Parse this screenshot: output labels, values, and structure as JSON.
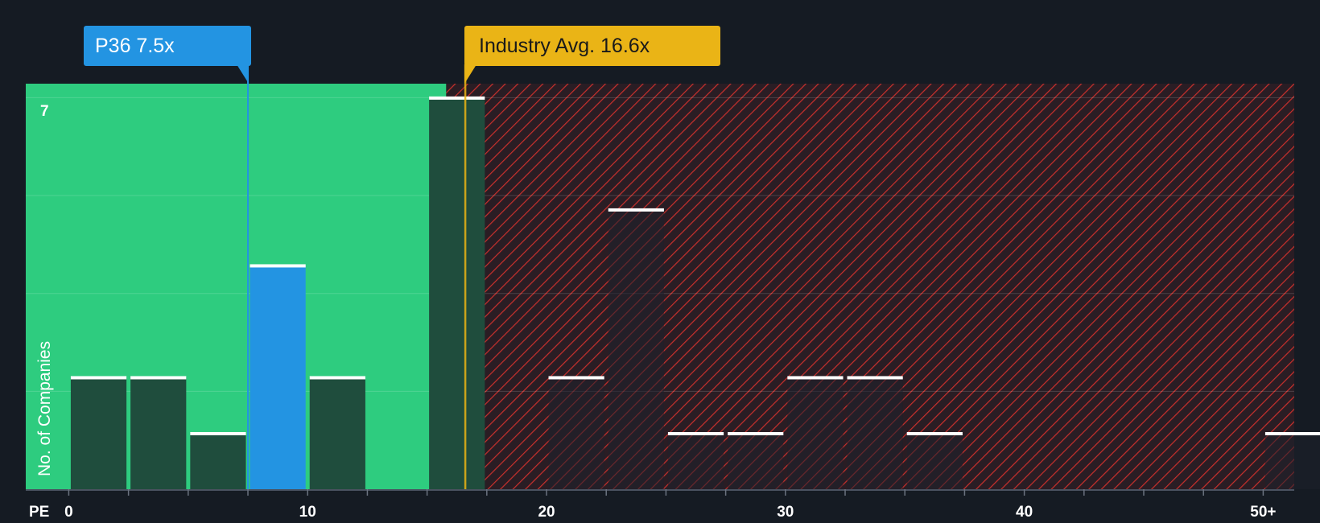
{
  "company_label": "P36 7.5x",
  "industry_label": "Industry Avg. 16.6x",
  "colors": {
    "background": "#151b23",
    "fair_zone": "#2ecc7f",
    "bar_dark": "#1f4d3d",
    "company_bar": "#2394e2",
    "industry_line": "#eab416",
    "overvalued_hatch": "#c9302c"
  },
  "chart_data": {
    "type": "bar",
    "xlabel": "PE",
    "ylabel": "No. of Companies",
    "x_tick_labels": [
      "0",
      "10",
      "20",
      "30",
      "40",
      "50+"
    ],
    "x_ticks": [
      0,
      10,
      20,
      30,
      40,
      50
    ],
    "y_tick_labels": [
      "7"
    ],
    "xlim": [
      -1.8,
      51.3
    ],
    "ylim": [
      0,
      7.25
    ],
    "bin_width": 2.5,
    "company_pe": 7.5,
    "industry_avg_pe": 16.6,
    "fair_zone_upper": 15.8,
    "bins": [
      {
        "start": 0,
        "count": 2
      },
      {
        "start": 2.5,
        "count": 2
      },
      {
        "start": 5,
        "count": 1
      },
      {
        "start": 7.5,
        "count": 4,
        "highlight": true
      },
      {
        "start": 10,
        "count": 2
      },
      {
        "start": 15,
        "count": 7
      },
      {
        "start": 20,
        "count": 2
      },
      {
        "start": 22.5,
        "count": 5
      },
      {
        "start": 25,
        "count": 1
      },
      {
        "start": 27.5,
        "count": 1
      },
      {
        "start": 30,
        "count": 2
      },
      {
        "start": 32.5,
        "count": 2
      },
      {
        "start": 35,
        "count": 1
      },
      {
        "start": 50,
        "count": 1
      }
    ]
  }
}
